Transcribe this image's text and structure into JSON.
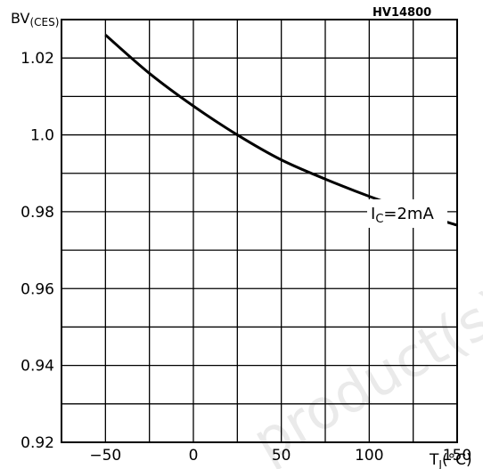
{
  "chart_data": {
    "type": "line",
    "code": "HV14800",
    "ylabel": {
      "main": "BV",
      "sub": "(CES)"
    },
    "xlabel": {
      "main": "T",
      "sub": "J",
      "unit": "(°C)"
    },
    "xlim": [
      -75,
      150
    ],
    "ylim": [
      0.92,
      1.03
    ],
    "x_ticks": [
      -50,
      0,
      50,
      100,
      150
    ],
    "x_tick_labels": [
      "−50",
      "0",
      "50",
      "100",
      "150"
    ],
    "y_ticks": [
      0.92,
      0.94,
      0.96,
      0.98,
      1.0,
      1.02
    ],
    "y_tick_labels": [
      "0.92",
      "0.94",
      "0.96",
      "0.98",
      "1.0",
      "1.02"
    ],
    "grid": true,
    "series": [
      {
        "annotation": {
          "main": "I",
          "sub": "C",
          "rest": "=2mA"
        },
        "x": [
          -50,
          -25,
          0,
          25,
          50,
          75,
          100,
          125,
          150
        ],
        "y": [
          1.026,
          1.016,
          1.0075,
          1.0,
          0.9935,
          0.9885,
          0.984,
          0.98,
          0.9765
        ]
      }
    ],
    "watermark": "product(s)"
  }
}
